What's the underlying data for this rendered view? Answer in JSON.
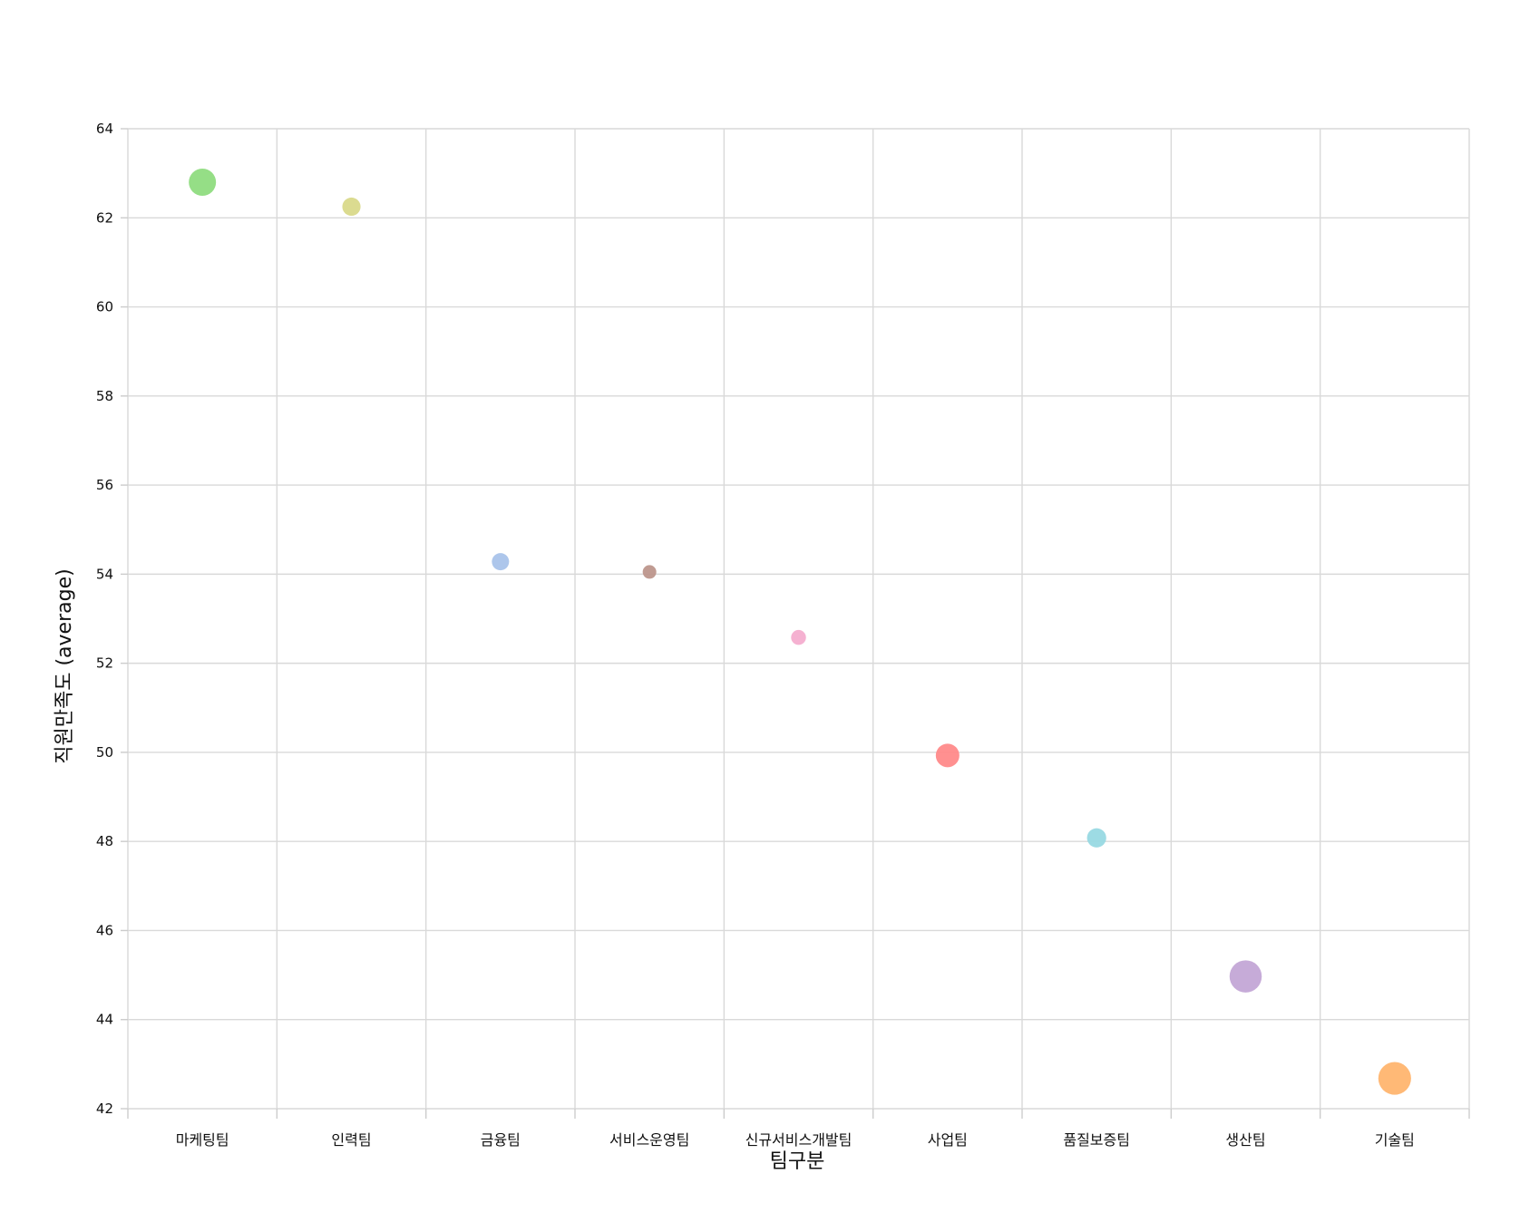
{
  "chart_data": {
    "type": "scatter",
    "title": "",
    "xlabel": "팀구분",
    "ylabel": "직원만족도 (average)",
    "categories": [
      "마케팅팀",
      "인력팀",
      "금융팀",
      "서비스운영팀",
      "신규서비스개발팀",
      "사업팀",
      "품질보증팀",
      "생산팀",
      "기술팀"
    ],
    "values": [
      62.8,
      62.25,
      54.28,
      54.05,
      52.58,
      49.93,
      48.08,
      44.97,
      42.68
    ],
    "relative_size": [
      1.0,
      0.45,
      0.4,
      0.25,
      0.3,
      0.75,
      0.5,
      1.4,
      1.45
    ],
    "colors": [
      "#8fdc7f",
      "#d9d98a",
      "#a9c3ea",
      "#bd968c",
      "#f4adcf",
      "#ff8a8a",
      "#98d9e3",
      "#c3a7d6",
      "#ffb56f"
    ],
    "ylim": [
      42,
      64
    ],
    "yticks": [
      42,
      44,
      46,
      48,
      50,
      52,
      54,
      56,
      58,
      60,
      62,
      64
    ],
    "grid": true,
    "legend": "none"
  }
}
